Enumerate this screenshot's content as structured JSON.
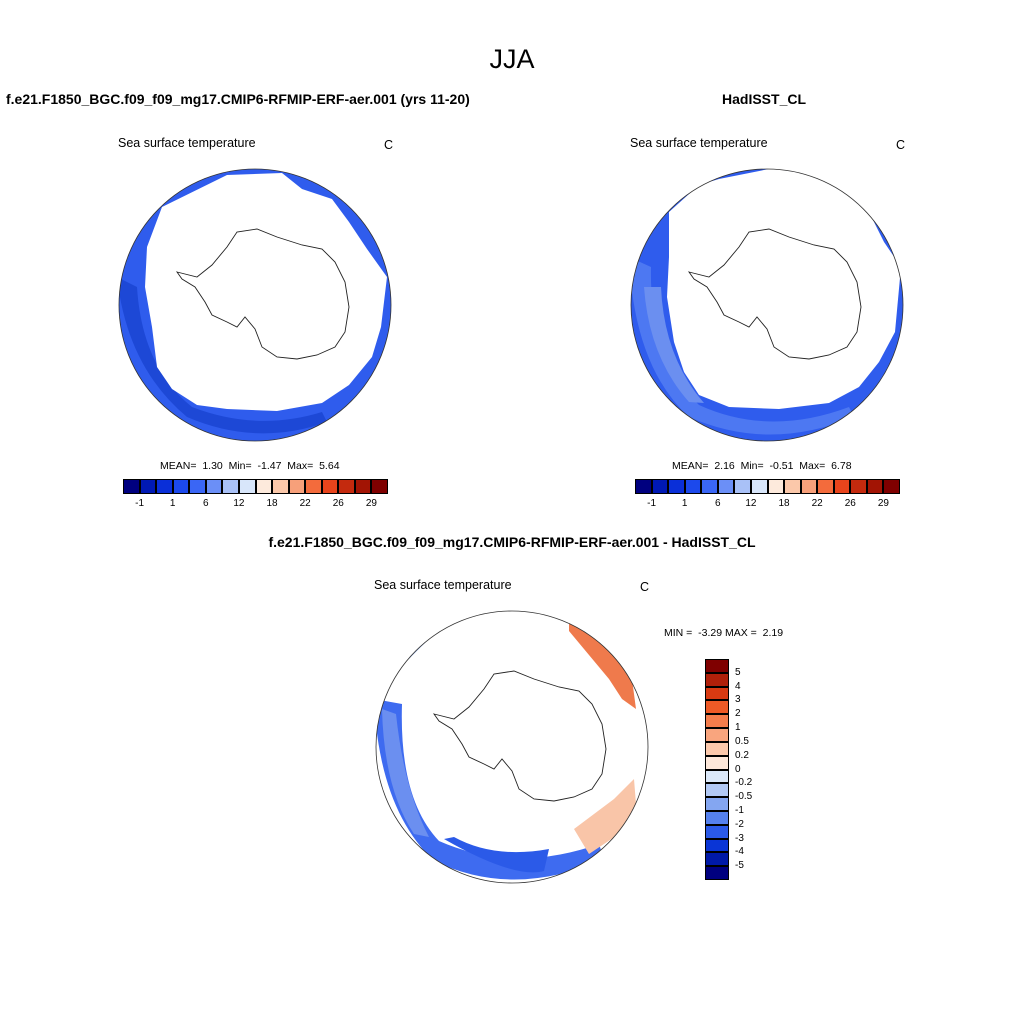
{
  "season": "JJA",
  "panels": {
    "model": {
      "title": "f.e21.F1850_BGC.f09_f09_mg17.CMIP6-RFMIP-ERF-aer.001 (yrs 11-20)",
      "var_label": "Sea surface temperature",
      "units": "C",
      "stats": {
        "mean_label": "MEAN=",
        "mean": "1.30",
        "min_label": "Min=",
        "min": "-1.47",
        "max_label": "Max=",
        "max": "5.64"
      }
    },
    "obs": {
      "title": "HadISST_CL",
      "var_label": "Sea surface temperature",
      "units": "C",
      "stats": {
        "mean_label": "MEAN=",
        "mean": "2.16",
        "min_label": "Min=",
        "min": "-0.51",
        "max_label": "Max=",
        "max": "6.78"
      }
    },
    "diff": {
      "title": "f.e21.F1850_BGC.f09_f09_mg17.CMIP6-RFMIP-ERF-aer.001 - HadISST_CL",
      "var_label": "Sea surface temperature",
      "units": "C",
      "stats": {
        "min_label": "MIN =",
        "min": "-3.29",
        "max_label": "MAX =",
        "max": "2.19"
      }
    }
  },
  "abs_colorbar": {
    "colors": [
      "#00007f",
      "#0019b4",
      "#0a2fd8",
      "#1c49ec",
      "#3a66f5",
      "#6b8ff7",
      "#a9c1f7",
      "#d8e6fa",
      "#fdeadc",
      "#fbc8aa",
      "#f7a07a",
      "#f36b3c",
      "#e8441c",
      "#c42a0e",
      "#a21404",
      "#7f0000"
    ],
    "labels": [
      "-1",
      "1",
      "6",
      "12",
      "18",
      "22",
      "26",
      "29"
    ]
  },
  "diff_colorbar": {
    "colors": [
      "#7f0000",
      "#b0200a",
      "#d83a12",
      "#ee5a26",
      "#f47d4c",
      "#f9a57e",
      "#fcc9ac",
      "#fde8da",
      "#dce9fa",
      "#b2c9f5",
      "#84a6f1",
      "#5581ee",
      "#2b5ae8",
      "#0a35d6",
      "#0019a8",
      "#00007f"
    ],
    "labels": [
      "5",
      "4",
      "3",
      "2",
      "1",
      "0.5",
      "0.2",
      "0",
      "-0.2",
      "-0.5",
      "-1",
      "-2",
      "-3",
      "-4",
      "-5"
    ]
  },
  "colors": {
    "blue_dark": "#1d48d6",
    "blue_mid": "#3a66f0",
    "blue_light": "#6b8ff0",
    "orange": "#ef7a4c",
    "peach": "#f9c5a8",
    "ice_white": "#ffffff"
  }
}
